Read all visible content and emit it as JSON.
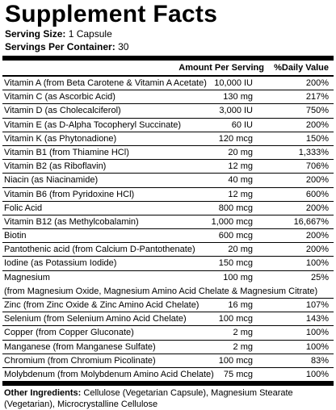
{
  "title": "Supplement Facts",
  "serving_size_label": "Serving Size:",
  "serving_size_value": "1 Capsule",
  "servings_per_container_label": "Servings Per Container:",
  "servings_per_container_value": "30",
  "header": {
    "amount": "Amount Per Serving",
    "dv": "%Daily Value"
  },
  "rows": [
    {
      "name": "Vitamin A (from Beta Carotene & Vitamin A Acetate)",
      "amount": "10,000 IU",
      "dv": "200%"
    },
    {
      "name": "Vitamin C (as Ascorbic Acid)",
      "amount": "130 mg",
      "dv": "217%"
    },
    {
      "name": "Vitamin D (as Cholecalciferol)",
      "amount": "3,000 IU",
      "dv": "750%"
    },
    {
      "name": "Vitamin E (as D-Alpha Tocopheryl Succinate)",
      "amount": "60 IU",
      "dv": "200%"
    },
    {
      "name": "Vitamin K (as Phytonadione)",
      "amount": "120 mcg",
      "dv": "150%"
    },
    {
      "name": "Vitamin B1 (from Thiamine HCl)",
      "amount": "20 mg",
      "dv": "1,333%"
    },
    {
      "name": "Vitamin B2 (as Riboflavin)",
      "amount": "12 mg",
      "dv": "706%"
    },
    {
      "name": "Niacin (as Niacinamide)",
      "amount": "40 mg",
      "dv": "200%"
    },
    {
      "name": "Vitamin B6 (from Pyridoxine HCl)",
      "amount": "12 mg",
      "dv": "600%"
    },
    {
      "name": "Folic Acid",
      "amount": "800 mcg",
      "dv": "200%"
    },
    {
      "name": "Vitamin B12 (as Methylcobalamin)",
      "amount": "1,000 mcg",
      "dv": "16,667%"
    },
    {
      "name": "Biotin",
      "amount": "600 mcg",
      "dv": "200%"
    },
    {
      "name": "Pantothenic acid (from Calcium D-Pantothenate)",
      "amount": "20 mg",
      "dv": "200%"
    },
    {
      "name": "Iodine (as Potassium Iodide)",
      "amount": "150 mcg",
      "dv": "100%"
    },
    {
      "name": "Magnesium",
      "amount": "100 mg",
      "dv": "25%",
      "sub": "(from Magnesium Oxide, Magnesium Amino Acid Chelate & Magnesium Citrate)"
    },
    {
      "name": "Zinc (from Zinc Oxide & Zinc Amino Acid Chelate)",
      "amount": "16 mg",
      "dv": "107%"
    },
    {
      "name": "Selenium (from Selenium Amino Acid Chelate)",
      "amount": "100 mcg",
      "dv": "143%"
    },
    {
      "name": "Copper (from Copper Gluconate)",
      "amount": "2 mg",
      "dv": "100%"
    },
    {
      "name": "Manganese (from Manganese Sulfate)",
      "amount": "2 mg",
      "dv": "100%"
    },
    {
      "name": "Chromium (from Chromium Picolinate)",
      "amount": "100 mcg",
      "dv": "83%"
    },
    {
      "name": "Molybdenum (from Molybdenum Amino Acid Chelate)",
      "amount": "75 mcg",
      "dv": "100%"
    }
  ],
  "other_label": "Other Ingredients:",
  "other_text": "Cellulose (Vegetarian Capsule), Magnesium Stearate (Vegetarian), Microcrystalline Cellulose"
}
